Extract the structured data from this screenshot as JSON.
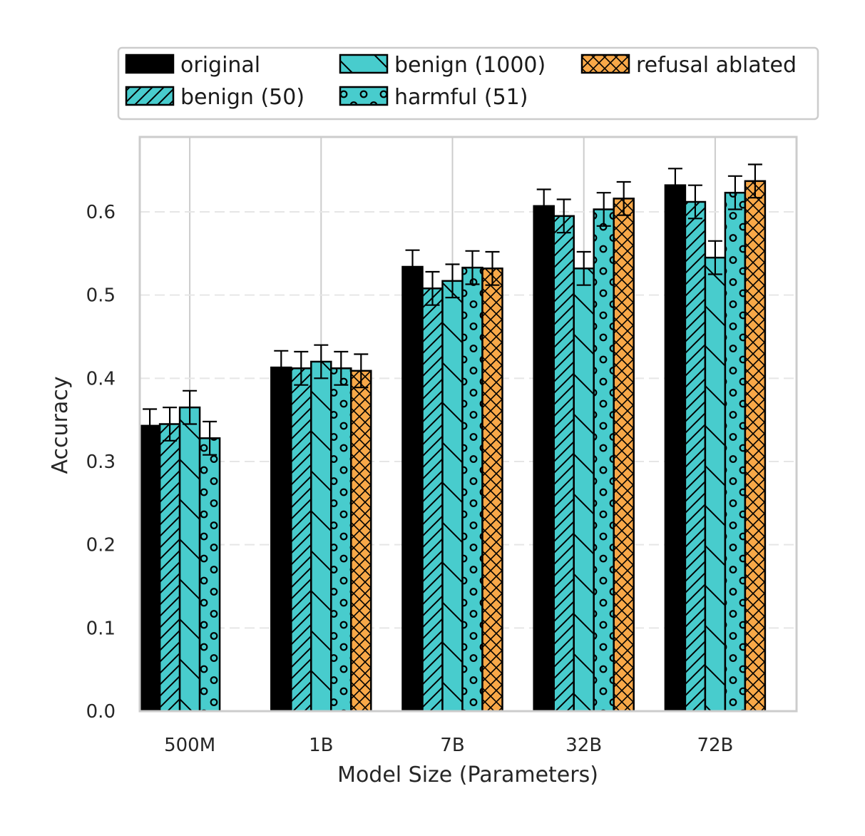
{
  "chart_data": {
    "type": "bar",
    "title": "",
    "xlabel": "Model Size (Parameters)",
    "ylabel": "Accuracy",
    "ylim": [
      0,
      0.69
    ],
    "yticks": [
      "0.0",
      "0.1",
      "0.2",
      "0.3",
      "0.4",
      "0.5",
      "0.6"
    ],
    "categories": [
      "500M",
      "1B",
      "7B",
      "32B",
      "72B"
    ],
    "grid": "on",
    "legend_position": "top",
    "series": [
      {
        "name": "original",
        "color": "#000000",
        "pattern": "solid",
        "values": [
          0.343,
          0.413,
          0.534,
          0.607,
          0.632
        ],
        "errors": [
          0.02,
          0.02,
          0.02,
          0.02,
          0.02
        ]
      },
      {
        "name": "benign (50)",
        "color": "#48cccd",
        "pattern": "diagonal",
        "values": [
          0.345,
          0.412,
          0.508,
          0.595,
          0.612
        ],
        "errors": [
          0.02,
          0.02,
          0.02,
          0.02,
          0.02
        ]
      },
      {
        "name": "benign (1000)",
        "color": "#48cccd",
        "pattern": "backslash",
        "values": [
          0.365,
          0.42,
          0.517,
          0.532,
          0.545
        ],
        "errors": [
          0.02,
          0.02,
          0.02,
          0.02,
          0.02
        ]
      },
      {
        "name": "harmful (51)",
        "color": "#48cccd",
        "pattern": "circles",
        "values": [
          0.328,
          0.412,
          0.533,
          0.603,
          0.623
        ],
        "errors": [
          0.02,
          0.02,
          0.02,
          0.02,
          0.02
        ]
      },
      {
        "name": "refusal ablated",
        "color": "#f8a848",
        "pattern": "crosshatch",
        "values": [
          null,
          0.409,
          0.532,
          0.616,
          0.637
        ],
        "errors": [
          null,
          0.02,
          0.02,
          0.02,
          0.02
        ]
      }
    ]
  }
}
